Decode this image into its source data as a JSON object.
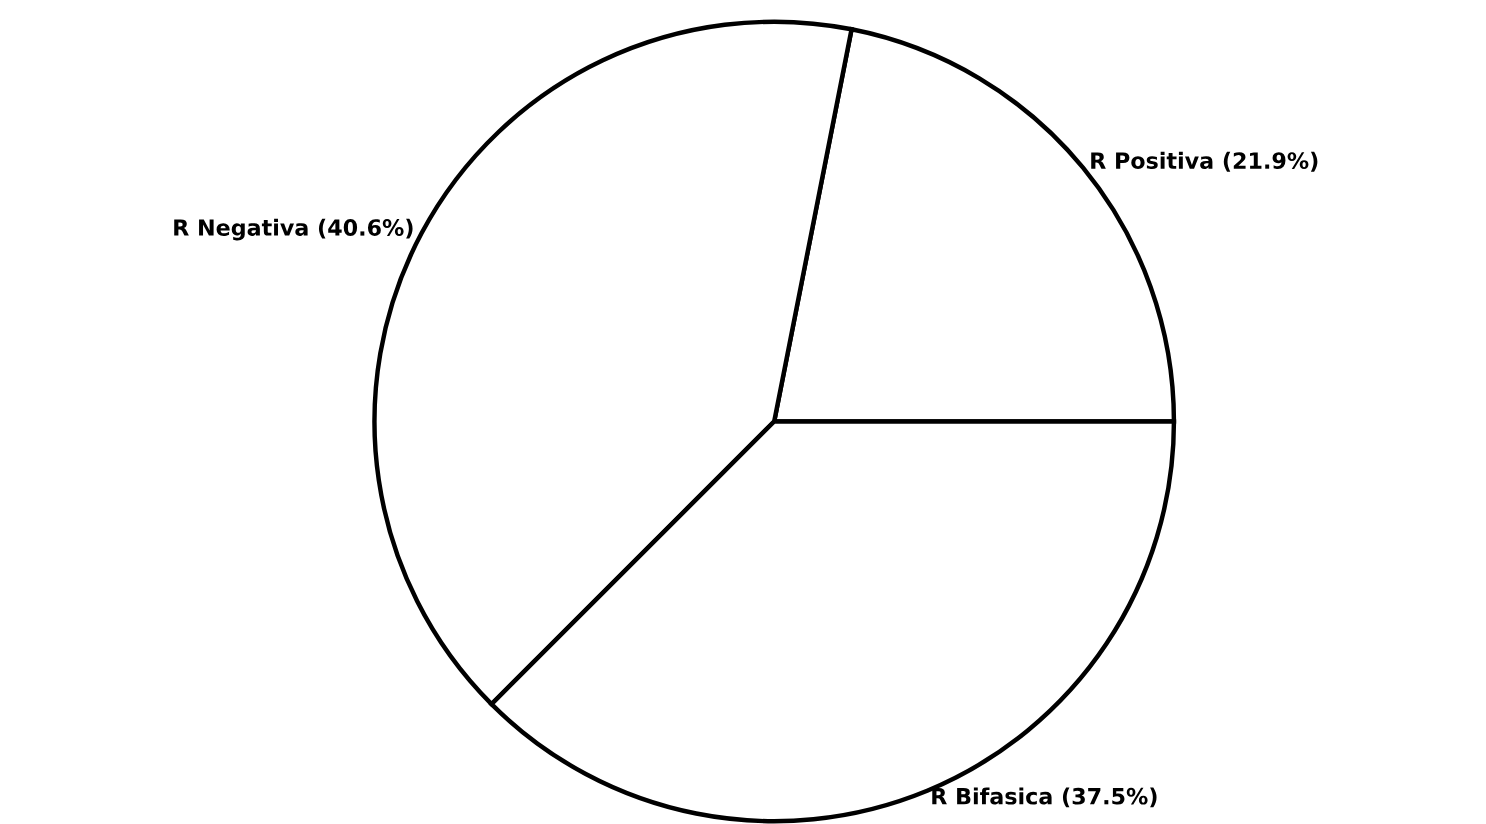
{
  "chart_data": {
    "type": "pie",
    "categories": [
      "R Positiva (21.9%)",
      "R Negativa (40.6%)",
      "R Bifasica (37.5%)"
    ],
    "values": [
      21.9,
      40.6,
      37.5
    ],
    "colors": [
      "#ffffff",
      "#ffffff",
      "#ffffff"
    ]
  }
}
